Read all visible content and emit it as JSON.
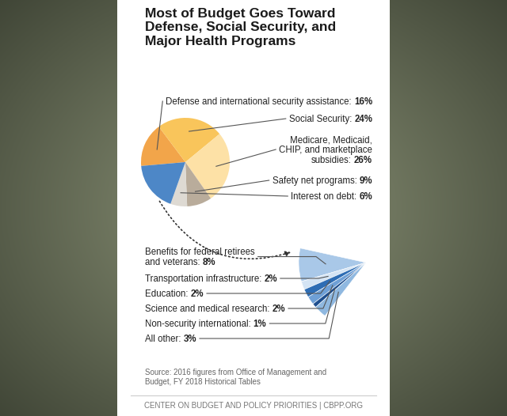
{
  "chart_data": {
    "type": "pie",
    "title": "Most of Budget Goes Toward\nDefense, Social Security, and\nMajor Health Programs",
    "categories": [
      "Defense and international security assistance:",
      "Social Security:",
      "Medicare, Medicaid,\nCHIP, and marketplace\nsubsidies:",
      "Safety net programs:",
      "Interest on debt:"
    ],
    "values": [
      16,
      24,
      26,
      9,
      6
    ],
    "value_labels": [
      "16%",
      "24%",
      "26%",
      "9%",
      "6%"
    ],
    "colors": [
      "#f2a54a",
      "#f9c55b",
      "#fde1a6",
      "#b9ac9b",
      "#dedad3"
    ],
    "data_labels": true,
    "breakdown": {
      "color": "#4d87c7",
      "categories": [
        "Benefits for federal retirees\nand veterans:",
        "Transportation infrastructure:",
        "Education:",
        "Science and medical research:",
        "Non-security international:",
        "All other:"
      ],
      "values": [
        8,
        2,
        2,
        2,
        1,
        3
      ],
      "value_labels": [
        "8%",
        "2%",
        "2%",
        "2%",
        "1%",
        "3%"
      ],
      "colors": [
        "#a9c8e8",
        "#d4e4f4",
        "#2e6db4",
        "#6fa0d6",
        "#1f4f8f",
        "#8fb8e0"
      ]
    },
    "source": "Source: 2016 figures from Office of Management and\nBudget, FY 2018 Historical Tables",
    "footer": "CENTER ON BUDGET AND POLICY PRIORITIES | CBPP.ORG"
  }
}
